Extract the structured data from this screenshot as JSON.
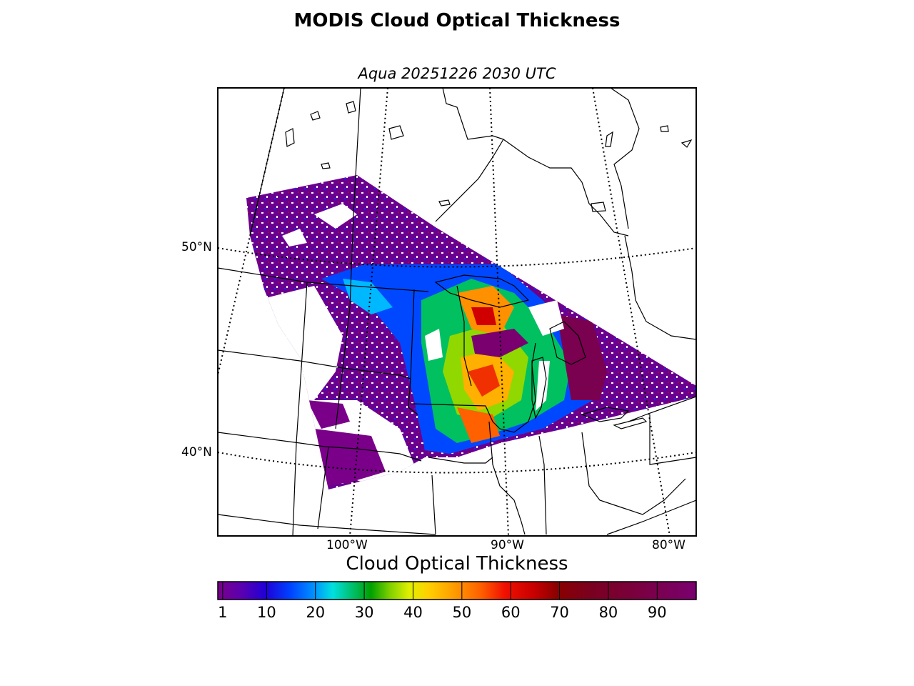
{
  "header": {
    "title": "MODIS Cloud Optical Thickness",
    "subtitle": "Aqua 20251226 2030 UTC"
  },
  "map": {
    "lat_labels": [
      "50°N",
      "40°N"
    ],
    "lon_labels": [
      "100°W",
      "90°W",
      "80°W"
    ]
  },
  "colorbar": {
    "title": "Cloud Optical Thickness",
    "ticks": [
      "1",
      "10",
      "20",
      "30",
      "40",
      "50",
      "60",
      "70",
      "80",
      "90"
    ],
    "tick_values": [
      1,
      10,
      20,
      30,
      40,
      50,
      60,
      70,
      80,
      90
    ],
    "range": [
      0,
      98
    ]
  }
}
